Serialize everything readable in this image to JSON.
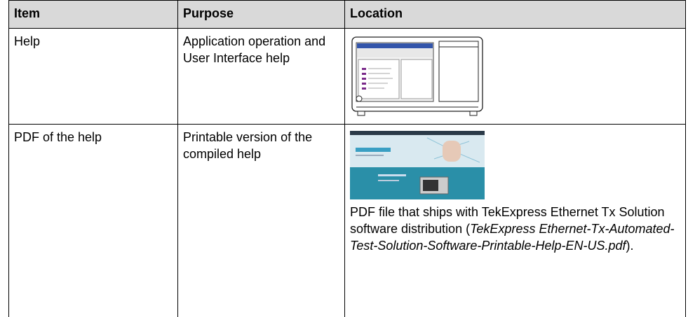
{
  "table": {
    "header": [
      "Item",
      "Purpose",
      "Location"
    ],
    "rows": [
      [
        "Help",
        "Application operation and User Interface help"
      ],
      [
        "PDF of the help",
        "Printable version of the compiled help",
        {
          "before": "PDF file that ships with TekExpress Ethernet Tx Solution software distribution (",
          "file": "TekExpress Ethernet-Tx-Automated-Test-Solution-Software-Printable-Help-EN-US.pdf",
          "after": ")."
        }
      ]
    ]
  }
}
